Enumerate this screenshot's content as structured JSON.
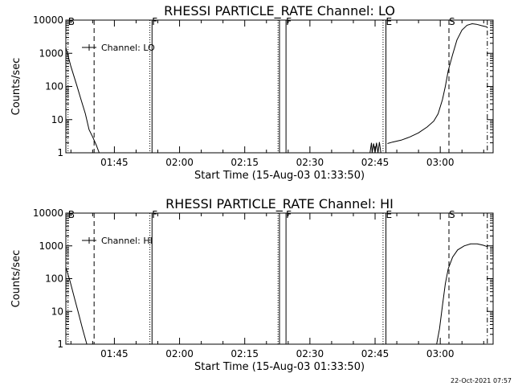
{
  "chart_data": [
    {
      "type": "line",
      "title": "RHESSI PARTICLE_RATE Channel: LO",
      "xlabel": "Start Time (15-Aug-03 01:33:50)",
      "ylabel": "Counts/sec",
      "yscale": "log",
      "ylim": [
        1,
        10000
      ],
      "xlim": [
        "01:33:50",
        "03:12:10"
      ],
      "grid": false,
      "y_tick_labels": [
        "1",
        "10",
        "100",
        "1000",
        "10000"
      ],
      "x_tick_labels": [
        "01:45",
        "02:00",
        "02:15",
        "02:30",
        "02:45",
        "03:00"
      ],
      "legend": {
        "placement": "top-left",
        "entries": [
          "Channel: LO"
        ]
      },
      "series": [
        {
          "name": "Channel: LO",
          "segments": [
            [
              [
                "01:33:50",
                1500
              ],
              [
                "01:35:00",
                400
              ],
              [
                "01:36:20",
                110
              ],
              [
                "01:37:20",
                40
              ],
              [
                "01:38:20",
                15
              ],
              [
                "01:39:10",
                5
              ],
              [
                "01:40:00",
                3
              ],
              [
                "01:40:50",
                1.7
              ],
              [
                "01:41:30",
                1
              ]
            ],
            [
              [
                "02:43:50",
                1
              ],
              [
                "02:44:10",
                2
              ],
              [
                "02:44:20",
                1
              ],
              [
                "02:44:40",
                1.9
              ],
              [
                "02:45:00",
                1
              ],
              [
                "02:45:20",
                2
              ],
              [
                "02:45:40",
                1
              ],
              [
                "02:46:00",
                2.1
              ],
              [
                "02:46:20",
                1
              ]
            ],
            [
              [
                "02:47:50",
                1.9
              ],
              [
                "02:49:00",
                2.1
              ],
              [
                "02:51:00",
                2.4
              ],
              [
                "02:53:00",
                3
              ],
              [
                "02:55:00",
                4
              ],
              [
                "02:57:00",
                6
              ],
              [
                "02:58:30",
                9
              ],
              [
                "02:59:30",
                15
              ],
              [
                "03:00:30",
                40
              ],
              [
                "03:01:10",
                100
              ],
              [
                "03:01:50",
                300
              ],
              [
                "03:02:50",
                900
              ],
              [
                "03:03:50",
                2500
              ],
              [
                "03:05:00",
                5000
              ],
              [
                "03:06:10",
                7000
              ],
              [
                "03:07:20",
                7800
              ],
              [
                "03:08:20",
                7500
              ],
              [
                "03:09:30",
                6800
              ],
              [
                "03:10:50",
                6200
              ]
            ]
          ]
        }
      ],
      "annotations": [
        {
          "label": "B",
          "time": "01:34:20",
          "style": "dotted"
        },
        {
          "label": "",
          "time": "01:40:20",
          "style": "dashed"
        },
        {
          "label": "",
          "time": "01:53:10",
          "style": "dotted"
        },
        {
          "label": "F",
          "time": "01:53:40",
          "style": "solid"
        },
        {
          "label": "",
          "time": "02:22:40",
          "style": "dotted"
        },
        {
          "label": "",
          "time": "02:23:00",
          "style": "solid"
        },
        {
          "label": "F",
          "time": "02:24:30",
          "style": "solid"
        },
        {
          "label": "",
          "time": "02:46:50",
          "style": "dotted"
        },
        {
          "label": "E",
          "time": "02:47:30",
          "style": "solid"
        },
        {
          "label": "S",
          "time": "03:02:00",
          "style": "dashed"
        },
        {
          "label": "",
          "time": "03:10:50",
          "style": "dashdot"
        }
      ]
    },
    {
      "type": "line",
      "title": "RHESSI PARTICLE_RATE Channel: HI",
      "xlabel": "Start Time (15-Aug-03 01:33:50)",
      "ylabel": "Counts/sec",
      "yscale": "log",
      "ylim": [
        1,
        10000
      ],
      "xlim": [
        "01:33:50",
        "03:12:10"
      ],
      "grid": false,
      "y_tick_labels": [
        "1",
        "10",
        "100",
        "1000",
        "10000"
      ],
      "x_tick_labels": [
        "01:45",
        "02:00",
        "02:15",
        "02:30",
        "02:45",
        "03:00"
      ],
      "legend": {
        "placement": "top-left",
        "entries": [
          "Channel: HI"
        ]
      },
      "series": [
        {
          "name": "Channel: HI",
          "segments": [
            [
              [
                "01:33:50",
                220
              ],
              [
                "01:34:50",
                80
              ],
              [
                "01:35:50",
                25
              ],
              [
                "01:36:50",
                8
              ],
              [
                "01:37:40",
                3
              ],
              [
                "01:38:40",
                1
              ]
            ],
            [
              [
                "02:59:10",
                1
              ],
              [
                "02:59:50",
                3
              ],
              [
                "03:00:30",
                15
              ],
              [
                "03:01:10",
                70
              ],
              [
                "03:01:50",
                200
              ],
              [
                "03:02:50",
                450
              ],
              [
                "03:04:00",
                750
              ],
              [
                "03:05:30",
                1000
              ],
              [
                "03:07:00",
                1150
              ],
              [
                "03:08:30",
                1150
              ],
              [
                "03:09:50",
                1050
              ],
              [
                "03:10:50",
                950
              ]
            ]
          ]
        }
      ],
      "annotations": [
        {
          "label": "B",
          "time": "01:34:20",
          "style": "dotted"
        },
        {
          "label": "",
          "time": "01:40:20",
          "style": "dashed"
        },
        {
          "label": "",
          "time": "01:53:10",
          "style": "dotted"
        },
        {
          "label": "F",
          "time": "01:53:40",
          "style": "solid"
        },
        {
          "label": "",
          "time": "02:22:40",
          "style": "dotted"
        },
        {
          "label": "",
          "time": "02:23:00",
          "style": "solid"
        },
        {
          "label": "F",
          "time": "02:24:30",
          "style": "solid"
        },
        {
          "label": "",
          "time": "02:46:50",
          "style": "dotted"
        },
        {
          "label": "E",
          "time": "02:47:30",
          "style": "solid"
        },
        {
          "label": "S",
          "time": "03:02:00",
          "style": "dashed"
        },
        {
          "label": "",
          "time": "03:10:50",
          "style": "dashdot"
        }
      ]
    }
  ],
  "footer": {
    "timestamp": "22-Oct-2021 07:57"
  }
}
